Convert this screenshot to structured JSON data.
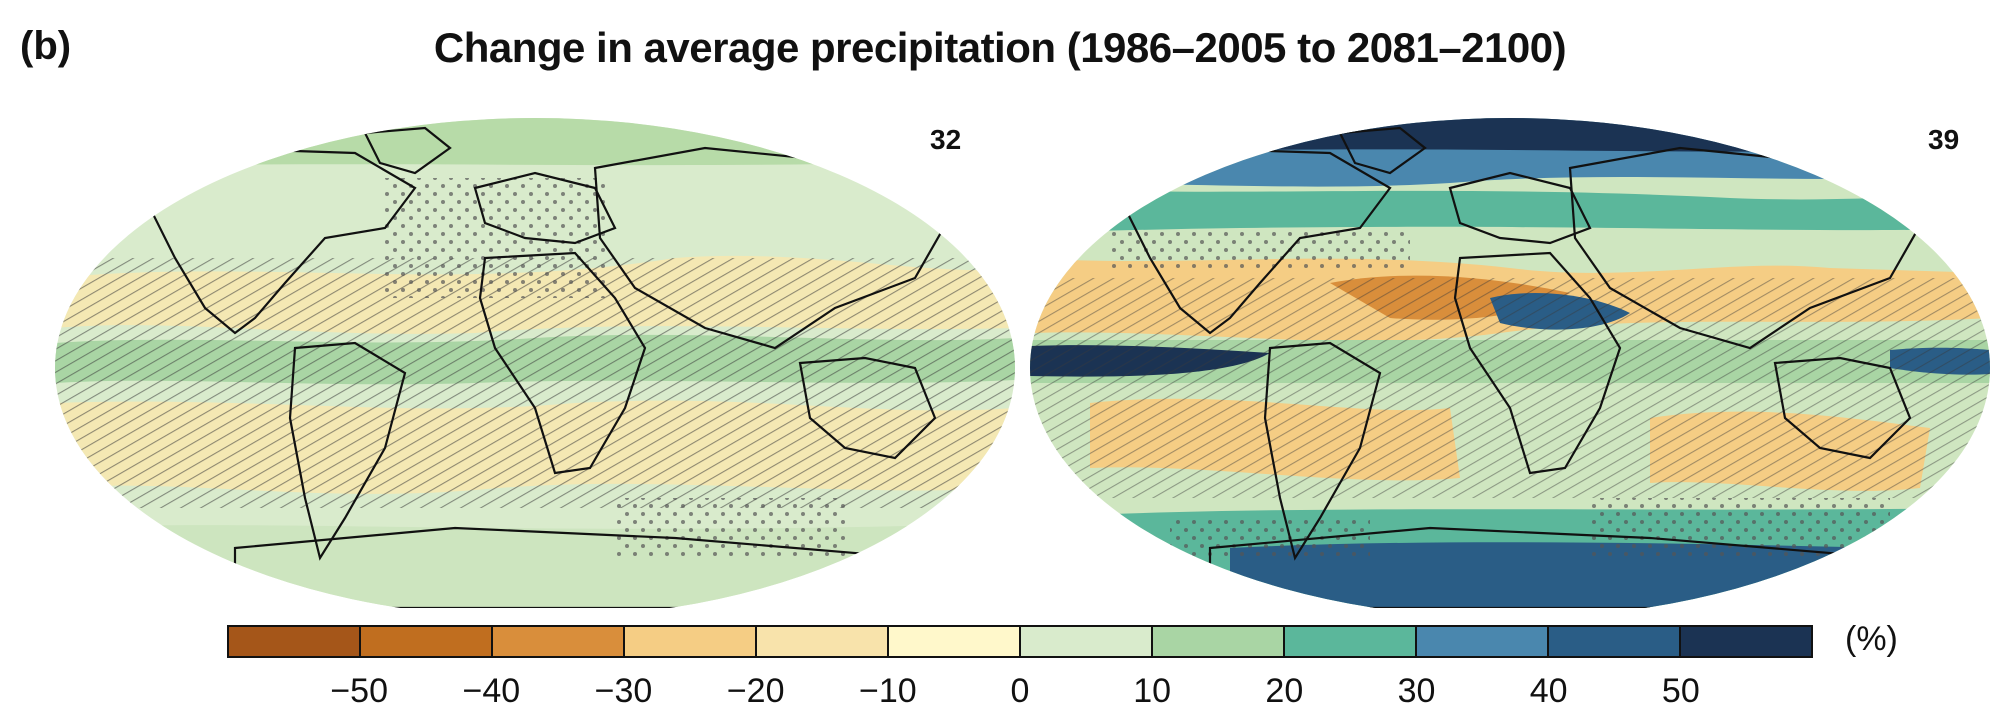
{
  "panel_label": "(b)",
  "title": "Change in average precipitation (1986–2005 to 2081–2100)",
  "maps": [
    {
      "id": "left",
      "value": "32",
      "field_color": "#d9ebcc"
    },
    {
      "id": "right",
      "value": "39",
      "field_color": "#cfe6c0"
    }
  ],
  "colorbar": {
    "unit": "(%)",
    "colors": [
      "#a55619",
      "#c06e1f",
      "#d98e3b",
      "#f5cd84",
      "#f8e3ab",
      "#fff8cb",
      "#d9ebcc",
      "#a9d5a4",
      "#5bb79b",
      "#4a87ae",
      "#2a5d86",
      "#1b3353"
    ],
    "ticks": [
      "−50",
      "−40",
      "−30",
      "−20",
      "−10",
      "0",
      "10",
      "20",
      "30",
      "40",
      "50"
    ]
  }
}
